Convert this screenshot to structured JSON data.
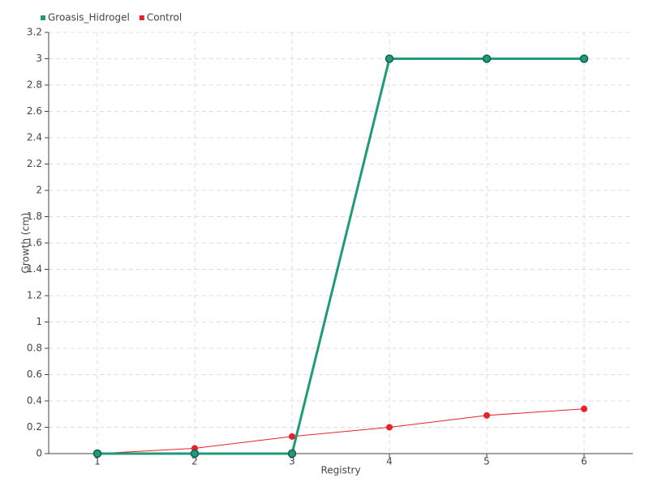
{
  "chart_data": {
    "type": "line",
    "x_label": "Registry",
    "y_label": "Growth (cm)",
    "x": [
      1,
      2,
      3,
      4,
      5,
      6
    ],
    "xlim": [
      0.5,
      6.5
    ],
    "xticks": [
      1,
      2,
      3,
      4,
      5,
      6
    ],
    "ylim": [
      0,
      3.2
    ],
    "yticks": [
      0,
      0.2,
      0.4,
      0.6,
      0.8,
      1,
      1.2,
      1.4,
      1.6,
      1.8,
      2,
      2.2,
      2.4,
      2.6,
      2.8,
      3,
      3.2
    ],
    "grid": true,
    "legend": "top-left",
    "series": [
      {
        "name": "Groasis_Hidrogel",
        "color": "#1f9a7a",
        "values": [
          0,
          0,
          0,
          3,
          3,
          3
        ]
      },
      {
        "name": "Control",
        "color": "#e8202a",
        "values": [
          0,
          0.04,
          0.13,
          0.2,
          0.29,
          0.34
        ]
      }
    ]
  }
}
